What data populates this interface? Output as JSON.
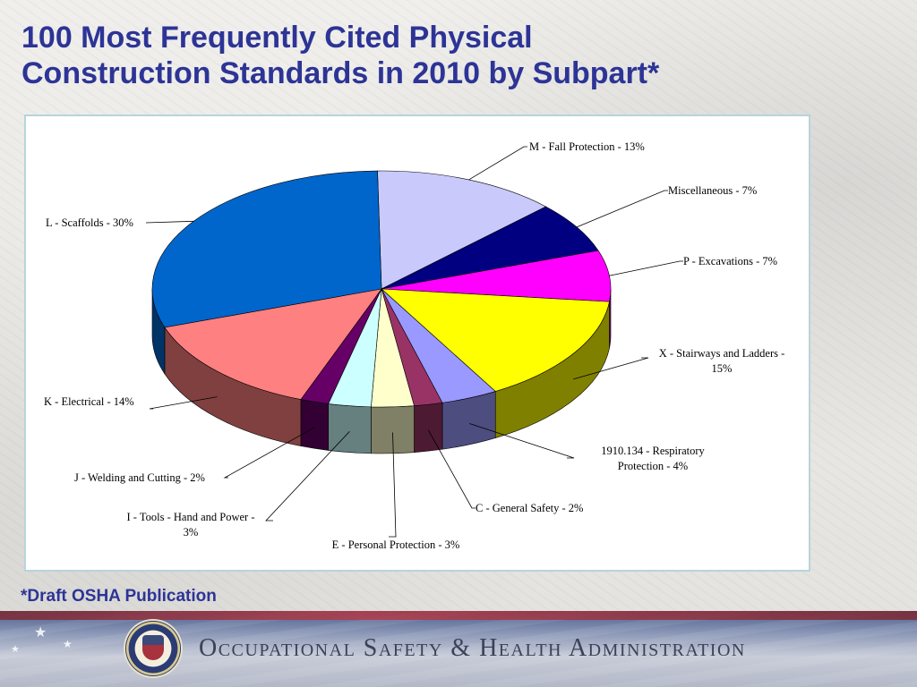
{
  "slide": {
    "title_line1": "100 Most Frequently Cited Physical",
    "title_line2": "Construction Standards in 2010 by Subpart*",
    "footnote": "*Draft OSHA Publication",
    "agency": "Occupational Safety & Health Administration"
  },
  "colors": {
    "title": "#2d3496",
    "frame_border": "#b7d4dc"
  },
  "chart_data": {
    "type": "pie",
    "title": "",
    "three_d": true,
    "slices": [
      {
        "label": "M - Fall Protection - 13%",
        "value": 13,
        "color": "#c9c9fb"
      },
      {
        "label": "Miscellaneous - 7%",
        "value": 7,
        "color": "#000080"
      },
      {
        "label": "P - Excavations - 7%",
        "value": 7,
        "color": "#ff00ff"
      },
      {
        "label": [
          "X - Stairways and Ladders -",
          "15%"
        ],
        "value": 15,
        "color": "#ffff00"
      },
      {
        "label": [
          "1910.134 - Respiratory",
          "Protection - 4%"
        ],
        "value": 4,
        "color": "#9999ff"
      },
      {
        "label": "C - General Safety - 2%",
        "value": 2,
        "color": "#993366"
      },
      {
        "label": "E - Personal Protection - 3%",
        "value": 3,
        "color": "#ffffcc"
      },
      {
        "label": [
          "I - Tools - Hand and Power -",
          "3%"
        ],
        "value": 3,
        "color": "#ccffff"
      },
      {
        "label": "J - Welding and Cutting - 2%",
        "value": 2,
        "color": "#660066"
      },
      {
        "label": "K - Electrical - 14%",
        "value": 14,
        "color": "#ff8080"
      },
      {
        "label": "L - Scaffolds - 30%",
        "value": 30,
        "color": "#0066cc"
      }
    ]
  }
}
